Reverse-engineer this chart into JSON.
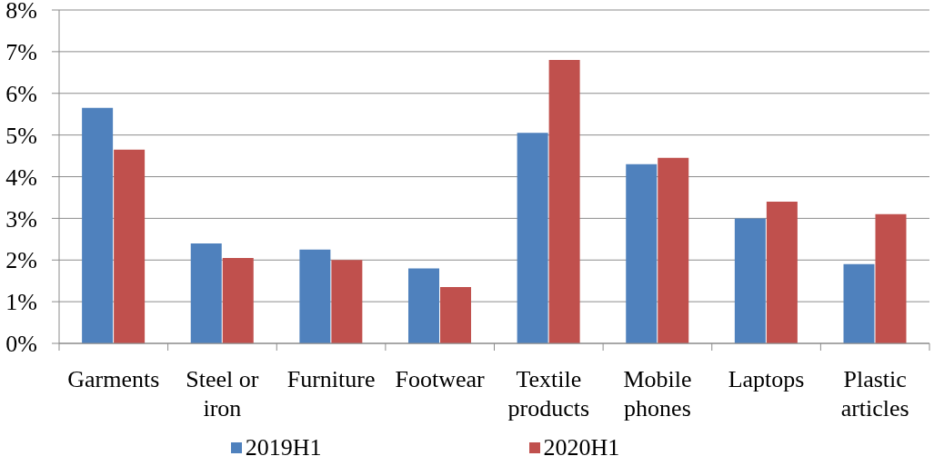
{
  "chart_data": {
    "type": "bar",
    "categories": [
      "Garments",
      "Steel or iron",
      "Furniture",
      "Footwear",
      "Textile products",
      "Mobile phones",
      "Laptops",
      "Plastic articles"
    ],
    "series": [
      {
        "name": "2019H1",
        "color": "#4f81bd",
        "values": [
          5.65,
          2.4,
          2.25,
          1.8,
          5.05,
          4.3,
          3.0,
          1.9
        ]
      },
      {
        "name": "2020H1",
        "color": "#c0504d",
        "values": [
          4.65,
          2.05,
          2.0,
          1.35,
          6.8,
          4.45,
          3.4,
          3.1
        ]
      }
    ],
    "ylim": [
      0,
      8
    ],
    "yticks": [
      {
        "value": 0,
        "label": "0%"
      },
      {
        "value": 1,
        "label": "1%"
      },
      {
        "value": 2,
        "label": "2%"
      },
      {
        "value": 3,
        "label": "3%"
      },
      {
        "value": 4,
        "label": "4%"
      },
      {
        "value": 5,
        "label": "5%"
      },
      {
        "value": 6,
        "label": "6%"
      },
      {
        "value": 7,
        "label": "7%"
      },
      {
        "value": 8,
        "label": "8%"
      }
    ],
    "grid": "y",
    "legend": "bottom"
  }
}
